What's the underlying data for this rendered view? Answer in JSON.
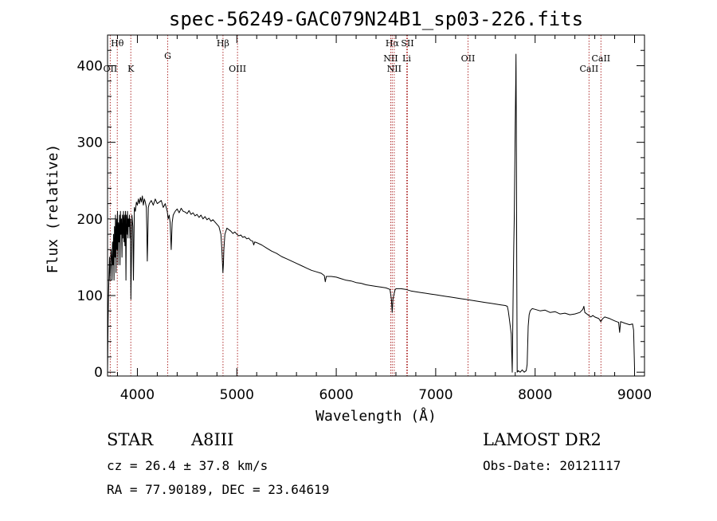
{
  "chart_data": {
    "type": "line",
    "title": "spec-56249-GAC079N24B1_sp03-226.fits",
    "xlabel": "Wavelength (Å)",
    "ylabel": "Flux (relative)",
    "xlim": [
      3700,
      9100
    ],
    "ylim": [
      -5,
      440
    ],
    "grid": false,
    "x_ticks": [
      4000,
      5000,
      6000,
      7000,
      8000,
      9000
    ],
    "y_ticks": [
      0,
      100,
      200,
      300,
      400
    ],
    "series": [
      {
        "points": [
          [
            3700,
            0
          ],
          [
            3705,
            60
          ],
          [
            3710,
            100
          ],
          [
            3715,
            130
          ],
          [
            3720,
            150
          ],
          [
            3725,
            120
          ],
          [
            3730,
            140
          ],
          [
            3735,
            160
          ],
          [
            3740,
            150
          ],
          [
            3745,
            120
          ],
          [
            3750,
            170
          ],
          [
            3755,
            140
          ],
          [
            3760,
            180
          ],
          [
            3765,
            120
          ],
          [
            3770,
            190
          ],
          [
            3775,
            150
          ],
          [
            3780,
            205
          ],
          [
            3785,
            130
          ],
          [
            3790,
            200
          ],
          [
            3795,
            160
          ],
          [
            3800,
            210
          ],
          [
            3805,
            140
          ],
          [
            3810,
            195
          ],
          [
            3815,
            170
          ],
          [
            3820,
            205
          ],
          [
            3825,
            140
          ],
          [
            3830,
            210
          ],
          [
            3835,
            180
          ],
          [
            3840,
            200
          ],
          [
            3845,
            150
          ],
          [
            3850,
            205
          ],
          [
            3855,
            175
          ],
          [
            3860,
            210
          ],
          [
            3865,
            170
          ],
          [
            3870,
            205
          ],
          [
            3875,
            165
          ],
          [
            3880,
            210
          ],
          [
            3885,
            120
          ],
          [
            3890,
            205
          ],
          [
            3895,
            180
          ],
          [
            3900,
            210
          ],
          [
            3905,
            175
          ],
          [
            3910,
            200
          ],
          [
            3915,
            190
          ],
          [
            3920,
            205
          ],
          [
            3925,
            175
          ],
          [
            3930,
            200
          ],
          [
            3935,
            95
          ],
          [
            3940,
            150
          ],
          [
            3945,
            205
          ],
          [
            3955,
            190
          ],
          [
            3960,
            120
          ],
          [
            3965,
            170
          ],
          [
            3970,
            215
          ],
          [
            3980,
            210
          ],
          [
            3990,
            222
          ],
          [
            4000,
            218
          ],
          [
            4010,
            226
          ],
          [
            4020,
            220
          ],
          [
            4030,
            228
          ],
          [
            4040,
            222
          ],
          [
            4050,
            230
          ],
          [
            4060,
            218
          ],
          [
            4070,
            226
          ],
          [
            4080,
            222
          ],
          [
            4090,
            215
          ],
          [
            4095,
            185
          ],
          [
            4100,
            145
          ],
          [
            4105,
            180
          ],
          [
            4110,
            215
          ],
          [
            4120,
            220
          ],
          [
            4140,
            224
          ],
          [
            4160,
            218
          ],
          [
            4180,
            226
          ],
          [
            4200,
            220
          ],
          [
            4220,
            222
          ],
          [
            4240,
            224
          ],
          [
            4260,
            215
          ],
          [
            4280,
            220
          ],
          [
            4300,
            210
          ],
          [
            4310,
            200
          ],
          [
            4320,
            205
          ],
          [
            4330,
            195
          ],
          [
            4340,
            160
          ],
          [
            4350,
            195
          ],
          [
            4360,
            205
          ],
          [
            4380,
            210
          ],
          [
            4400,
            213
          ],
          [
            4420,
            208
          ],
          [
            4440,
            214
          ],
          [
            4460,
            210
          ],
          [
            4480,
            209
          ],
          [
            4500,
            207
          ],
          [
            4520,
            211
          ],
          [
            4540,
            206
          ],
          [
            4560,
            208
          ],
          [
            4580,
            204
          ],
          [
            4600,
            206
          ],
          [
            4620,
            202
          ],
          [
            4640,
            205
          ],
          [
            4660,
            200
          ],
          [
            4680,
            203
          ],
          [
            4700,
            199
          ],
          [
            4720,
            201
          ],
          [
            4740,
            197
          ],
          [
            4760,
            199
          ],
          [
            4780,
            196
          ],
          [
            4800,
            193
          ],
          [
            4820,
            190
          ],
          [
            4840,
            180
          ],
          [
            4850,
            160
          ],
          [
            4860,
            130
          ],
          [
            4865,
            140
          ],
          [
            4870,
            160
          ],
          [
            4880,
            180
          ],
          [
            4900,
            188
          ],
          [
            4920,
            186
          ],
          [
            4940,
            184
          ],
          [
            4960,
            181
          ],
          [
            4980,
            183
          ],
          [
            5000,
            180
          ],
          [
            5020,
            178
          ],
          [
            5040,
            179
          ],
          [
            5060,
            176
          ],
          [
            5080,
            177
          ],
          [
            5100,
            174
          ],
          [
            5120,
            175
          ],
          [
            5140,
            172
          ],
          [
            5160,
            171
          ],
          [
            5170,
            166
          ],
          [
            5180,
            170
          ],
          [
            5200,
            169
          ],
          [
            5250,
            166
          ],
          [
            5300,
            162
          ],
          [
            5350,
            158
          ],
          [
            5400,
            155
          ],
          [
            5450,
            151
          ],
          [
            5500,
            148
          ],
          [
            5550,
            145
          ],
          [
            5600,
            142
          ],
          [
            5650,
            139
          ],
          [
            5700,
            136
          ],
          [
            5750,
            133
          ],
          [
            5800,
            131
          ],
          [
            5850,
            129
          ],
          [
            5880,
            126
          ],
          [
            5890,
            118
          ],
          [
            5900,
            125
          ],
          [
            5950,
            125
          ],
          [
            6000,
            124
          ],
          [
            6050,
            122
          ],
          [
            6100,
            120
          ],
          [
            6150,
            119
          ],
          [
            6200,
            117
          ],
          [
            6250,
            116
          ],
          [
            6300,
            114
          ],
          [
            6350,
            113
          ],
          [
            6400,
            112
          ],
          [
            6450,
            111
          ],
          [
            6500,
            110
          ],
          [
            6540,
            108
          ],
          [
            6555,
            95
          ],
          [
            6563,
            78
          ],
          [
            6570,
            95
          ],
          [
            6590,
            107
          ],
          [
            6600,
            109
          ],
          [
            6650,
            109
          ],
          [
            6700,
            108
          ],
          [
            6750,
            106
          ],
          [
            6800,
            105
          ],
          [
            6850,
            104
          ],
          [
            6900,
            103
          ],
          [
            6950,
            102
          ],
          [
            7000,
            101
          ],
          [
            7050,
            100
          ],
          [
            7100,
            99
          ],
          [
            7150,
            98
          ],
          [
            7200,
            97
          ],
          [
            7250,
            96
          ],
          [
            7300,
            95
          ],
          [
            7350,
            94
          ],
          [
            7400,
            93
          ],
          [
            7450,
            92
          ],
          [
            7500,
            91
          ],
          [
            7550,
            90
          ],
          [
            7600,
            89
          ],
          [
            7650,
            88
          ],
          [
            7700,
            87
          ],
          [
            7720,
            86
          ],
          [
            7730,
            80
          ],
          [
            7740,
            70
          ],
          [
            7750,
            60
          ],
          [
            7760,
            50
          ],
          [
            7770,
            0
          ],
          [
            7775,
            55
          ],
          [
            7780,
            110
          ],
          [
            7785,
            165
          ],
          [
            7790,
            200
          ],
          [
            7795,
            260
          ],
          [
            7800,
            320
          ],
          [
            7805,
            380
          ],
          [
            7808,
            415
          ],
          [
            7812,
            300
          ],
          [
            7815,
            150
          ],
          [
            7818,
            50
          ],
          [
            7820,
            0
          ],
          [
            7830,
            2
          ],
          [
            7850,
            0
          ],
          [
            7870,
            3
          ],
          [
            7890,
            0
          ],
          [
            7910,
            2
          ],
          [
            7920,
            10
          ],
          [
            7930,
            60
          ],
          [
            7940,
            75
          ],
          [
            7950,
            80
          ],
          [
            7970,
            83
          ],
          [
            8000,
            82
          ],
          [
            8050,
            80
          ],
          [
            8100,
            81
          ],
          [
            8150,
            78
          ],
          [
            8200,
            79
          ],
          [
            8250,
            76
          ],
          [
            8300,
            77
          ],
          [
            8350,
            75
          ],
          [
            8400,
            76
          ],
          [
            8450,
            78
          ],
          [
            8480,
            82
          ],
          [
            8490,
            86
          ],
          [
            8500,
            78
          ],
          [
            8540,
            74
          ],
          [
            8560,
            72
          ],
          [
            8580,
            74
          ],
          [
            8600,
            72
          ],
          [
            8640,
            70
          ],
          [
            8660,
            66
          ],
          [
            8680,
            70
          ],
          [
            8700,
            72
          ],
          [
            8750,
            70
          ],
          [
            8800,
            67
          ],
          [
            8840,
            65
          ],
          [
            8850,
            52
          ],
          [
            8860,
            66
          ],
          [
            8900,
            64
          ],
          [
            8950,
            62
          ],
          [
            8980,
            63
          ],
          [
            8990,
            55
          ],
          [
            8995,
            30
          ],
          [
            9000,
            5
          ]
        ]
      }
    ],
    "reference_lines": [
      {
        "label": "Hθ",
        "x": 3798,
        "row": 1
      },
      {
        "label": "OII",
        "x": 3727,
        "row": 2
      },
      {
        "label": "K",
        "x": 3934,
        "row": 2
      },
      {
        "label": "G",
        "x": 4305,
        "row": 1.5
      },
      {
        "label": "Hβ",
        "x": 4861,
        "row": 1
      },
      {
        "label": "OIII",
        "x": 5007,
        "row": 2
      },
      {
        "label": "Hα",
        "x": 6563,
        "row": 1
      },
      {
        "label": "SII",
        "x": 6716,
        "row": 1
      },
      {
        "label": "NII",
        "x": 6548,
        "row": 1.6
      },
      {
        "label": "Li",
        "x": 6708,
        "row": 1.6
      },
      {
        "label": "NII",
        "x": 6583,
        "row": 2
      },
      {
        "label": "OII",
        "x": 7325,
        "row": 1.6
      },
      {
        "label": "CaII",
        "x": 8542,
        "row": 2
      },
      {
        "label": "CaII",
        "x": 8662,
        "row": 1.6
      }
    ],
    "reference_line_color": "#b03030"
  },
  "info": {
    "class": "STAR",
    "subclass": "A8III",
    "survey": "LAMOST DR2",
    "cz": "cz = 26.4 ± 37.8 km/s",
    "obs_date": "Obs-Date: 20121117",
    "coords": "RA =  77.90189, DEC =  23.64619"
  }
}
